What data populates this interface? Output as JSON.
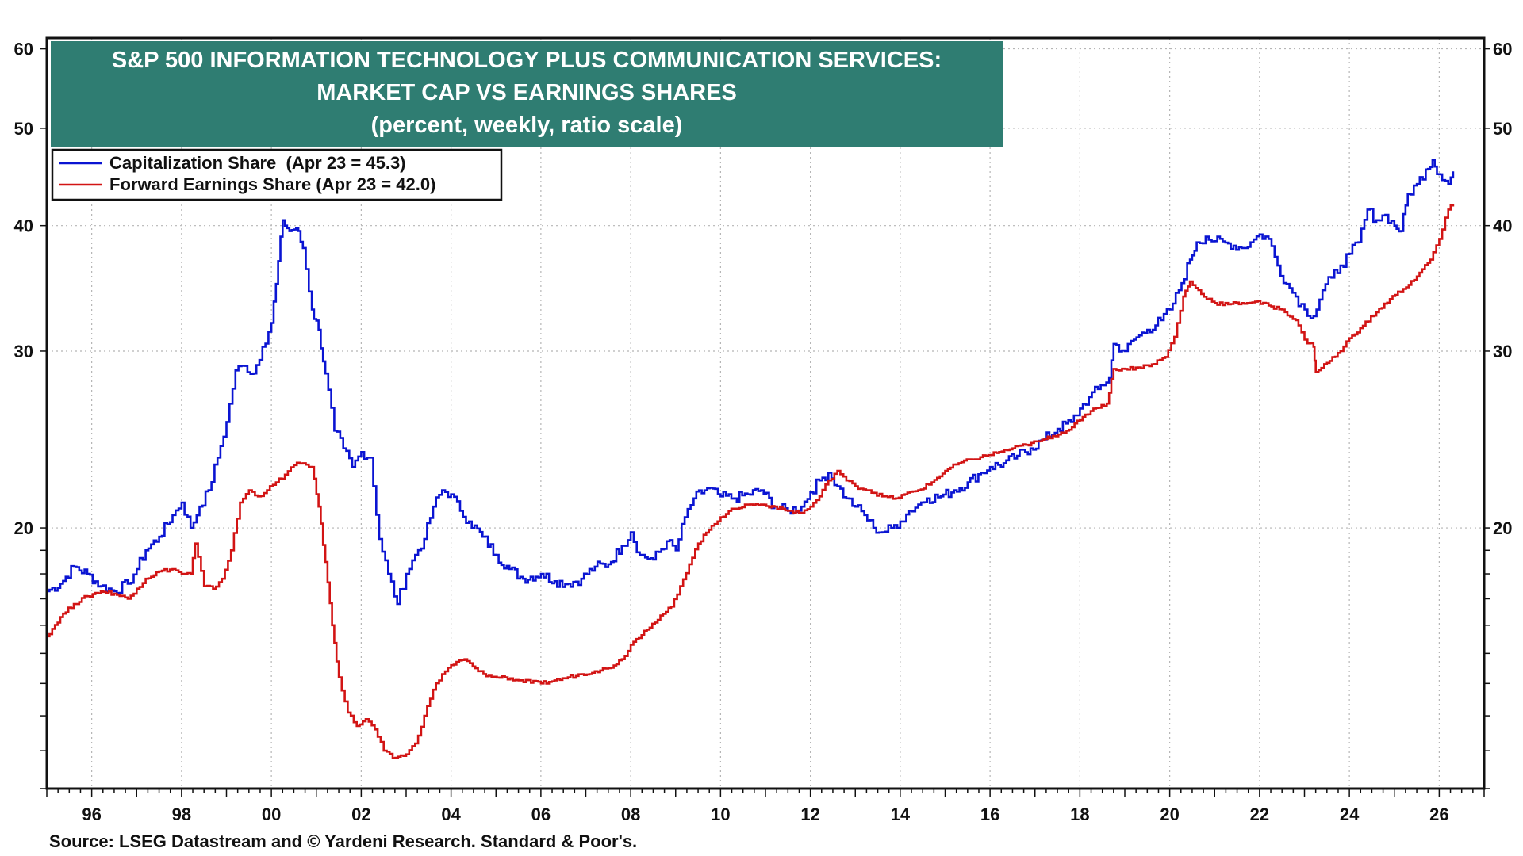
{
  "chart_data": {
    "type": "line",
    "title": "S&P 500 INFORMATION TECHNOLOGY PLUS COMMUNICATION SERVICES:",
    "subtitle": "MARKET CAP VS EARNINGS SHARES",
    "note": "(percent, weekly, ratio scale)",
    "source": "Source: LSEG Datastream and © Yardeni Research. Standard & Poor's.",
    "xlabel": "",
    "ylabel": "",
    "scale": "log",
    "xlim": [
      1995.0,
      2027.0
    ],
    "ylim": [
      11.0,
      61.5
    ],
    "x_ticks": [
      1996,
      1998,
      2000,
      2002,
      2004,
      2006,
      2008,
      2010,
      2012,
      2014,
      2016,
      2018,
      2020,
      2022,
      2024,
      2026
    ],
    "x_tick_labels": [
      "96",
      "98",
      "00",
      "02",
      "04",
      "06",
      "08",
      "10",
      "12",
      "14",
      "16",
      "18",
      "20",
      "22",
      "24",
      "26"
    ],
    "y_ticks": [
      20,
      30,
      40,
      50,
      60
    ],
    "y_tick_labels": [
      "20",
      "30",
      "40",
      "50",
      "60"
    ],
    "y_minor_ticks": [
      11,
      12,
      13,
      14,
      15,
      16,
      17,
      18,
      19,
      20,
      30,
      40,
      50,
      60
    ],
    "grid": true,
    "legend_position": "top-left",
    "series": [
      {
        "name": "Capitalization Share  (Apr 23 = 45.3)",
        "color": "#0a14d2",
        "points": [
          [
            1995.0,
            17.3
          ],
          [
            1995.3,
            17.6
          ],
          [
            1995.6,
            18.3
          ],
          [
            1995.9,
            18.0
          ],
          [
            1996.2,
            17.5
          ],
          [
            1996.5,
            17.3
          ],
          [
            1996.8,
            17.6
          ],
          [
            1997.0,
            18.2
          ],
          [
            1997.2,
            19.0
          ],
          [
            1997.5,
            19.6
          ],
          [
            1997.8,
            20.6
          ],
          [
            1998.0,
            21.2
          ],
          [
            1998.2,
            20.0
          ],
          [
            1998.4,
            21.0
          ],
          [
            1998.6,
            21.8
          ],
          [
            1998.8,
            23.5
          ],
          [
            1999.0,
            25.5
          ],
          [
            1999.2,
            28.7
          ],
          [
            1999.4,
            29.0
          ],
          [
            1999.6,
            28.5
          ],
          [
            1999.8,
            30.3
          ],
          [
            2000.0,
            32.0
          ],
          [
            2000.1,
            35.0
          ],
          [
            2000.25,
            40.5
          ],
          [
            2000.4,
            39.5
          ],
          [
            2000.55,
            39.8
          ],
          [
            2000.7,
            38.0
          ],
          [
            2000.9,
            33.0
          ],
          [
            2001.05,
            31.5
          ],
          [
            2001.2,
            28.5
          ],
          [
            2001.4,
            25.0
          ],
          [
            2001.6,
            24.0
          ],
          [
            2001.8,
            23.0
          ],
          [
            2002.0,
            23.8
          ],
          [
            2002.2,
            23.5
          ],
          [
            2002.4,
            19.5
          ],
          [
            2002.6,
            18.0
          ],
          [
            2002.8,
            16.8
          ],
          [
            2003.0,
            18.0
          ],
          [
            2003.2,
            18.8
          ],
          [
            2003.4,
            19.5
          ],
          [
            2003.6,
            21.0
          ],
          [
            2003.8,
            21.8
          ],
          [
            2004.0,
            21.6
          ],
          [
            2004.2,
            20.8
          ],
          [
            2004.4,
            20.3
          ],
          [
            2004.7,
            19.6
          ],
          [
            2005.0,
            18.8
          ],
          [
            2005.3,
            18.2
          ],
          [
            2005.6,
            17.8
          ],
          [
            2006.0,
            18.0
          ],
          [
            2006.3,
            17.7
          ],
          [
            2006.6,
            17.6
          ],
          [
            2006.9,
            17.8
          ],
          [
            2007.2,
            18.3
          ],
          [
            2007.5,
            18.4
          ],
          [
            2007.8,
            19.2
          ],
          [
            2008.0,
            19.8
          ],
          [
            2008.2,
            18.8
          ],
          [
            2008.5,
            18.6
          ],
          [
            2008.8,
            19.4
          ],
          [
            2009.0,
            19.0
          ],
          [
            2009.2,
            20.5
          ],
          [
            2009.4,
            21.4
          ],
          [
            2009.7,
            21.9
          ],
          [
            2010.0,
            21.5
          ],
          [
            2010.3,
            21.4
          ],
          [
            2010.6,
            21.6
          ],
          [
            2010.9,
            21.8
          ],
          [
            2011.2,
            21.0
          ],
          [
            2011.5,
            20.8
          ],
          [
            2011.8,
            21.0
          ],
          [
            2012.0,
            21.7
          ],
          [
            2012.2,
            22.3
          ],
          [
            2012.4,
            22.7
          ],
          [
            2012.6,
            22.0
          ],
          [
            2012.8,
            21.4
          ],
          [
            2013.0,
            21.0
          ],
          [
            2013.2,
            20.6
          ],
          [
            2013.4,
            20.0
          ],
          [
            2013.6,
            19.8
          ],
          [
            2013.8,
            20.0
          ],
          [
            2014.0,
            20.3
          ],
          [
            2014.2,
            20.8
          ],
          [
            2014.4,
            21.1
          ],
          [
            2014.6,
            21.4
          ],
          [
            2014.9,
            21.5
          ],
          [
            2015.2,
            21.8
          ],
          [
            2015.5,
            22.2
          ],
          [
            2015.8,
            22.7
          ],
          [
            2016.0,
            23.0
          ],
          [
            2016.3,
            23.2
          ],
          [
            2016.6,
            23.6
          ],
          [
            2016.9,
            24.0
          ],
          [
            2017.2,
            24.5
          ],
          [
            2017.5,
            25.1
          ],
          [
            2017.8,
            25.5
          ],
          [
            2018.0,
            26.3
          ],
          [
            2018.2,
            27.0
          ],
          [
            2018.4,
            27.5
          ],
          [
            2018.65,
            28.2
          ],
          [
            2018.75,
            30.5
          ],
          [
            2019.0,
            30.0
          ],
          [
            2019.2,
            30.8
          ],
          [
            2019.5,
            31.5
          ],
          [
            2019.8,
            32.2
          ],
          [
            2020.0,
            33.0
          ],
          [
            2020.2,
            34.5
          ],
          [
            2020.45,
            37.0
          ],
          [
            2020.6,
            38.5
          ],
          [
            2020.8,
            39.0
          ],
          [
            2021.0,
            38.6
          ],
          [
            2021.3,
            38.4
          ],
          [
            2021.6,
            38.0
          ],
          [
            2021.8,
            38.5
          ],
          [
            2022.0,
            39.2
          ],
          [
            2022.2,
            38.8
          ],
          [
            2022.4,
            36.5
          ],
          [
            2022.6,
            35.0
          ],
          [
            2022.8,
            34.0
          ],
          [
            2023.0,
            33.0
          ],
          [
            2023.2,
            32.5
          ],
          [
            2023.4,
            34.5
          ],
          [
            2023.6,
            35.5
          ],
          [
            2023.8,
            36.5
          ],
          [
            2024.0,
            37.5
          ],
          [
            2024.2,
            38.5
          ],
          [
            2024.4,
            41.5
          ],
          [
            2024.6,
            40.5
          ],
          [
            2024.8,
            41.0
          ],
          [
            2025.0,
            40.0
          ],
          [
            2025.15,
            39.5
          ],
          [
            2025.3,
            43.0
          ],
          [
            2025.5,
            44.0
          ],
          [
            2025.7,
            45.5
          ],
          [
            2025.85,
            46.5
          ],
          [
            2026.0,
            45.0
          ],
          [
            2026.2,
            44.0
          ],
          [
            2026.31,
            45.3
          ]
        ]
      },
      {
        "name": "Forward Earnings Share (Apr 23 = 42.0)",
        "color": "#d21414",
        "points": [
          [
            1995.0,
            15.6
          ],
          [
            1995.3,
            16.3
          ],
          [
            1995.6,
            16.8
          ],
          [
            1995.9,
            17.1
          ],
          [
            1996.2,
            17.3
          ],
          [
            1996.5,
            17.2
          ],
          [
            1996.8,
            17.0
          ],
          [
            1997.0,
            17.4
          ],
          [
            1997.2,
            17.8
          ],
          [
            1997.5,
            18.1
          ],
          [
            1997.8,
            18.2
          ],
          [
            1998.0,
            18.0
          ],
          [
            1998.2,
            18.0
          ],
          [
            1998.3,
            19.3
          ],
          [
            1998.5,
            17.5
          ],
          [
            1998.7,
            17.4
          ],
          [
            1998.9,
            17.8
          ],
          [
            1999.1,
            19.0
          ],
          [
            1999.3,
            21.2
          ],
          [
            1999.5,
            21.8
          ],
          [
            1999.7,
            21.5
          ],
          [
            1999.9,
            21.8
          ],
          [
            2000.1,
            22.2
          ],
          [
            2000.3,
            22.6
          ],
          [
            2000.5,
            23.1
          ],
          [
            2000.7,
            23.2
          ],
          [
            2000.9,
            23.0
          ],
          [
            2001.05,
            21.0
          ],
          [
            2001.2,
            18.5
          ],
          [
            2001.35,
            16.0
          ],
          [
            2001.5,
            14.2
          ],
          [
            2001.7,
            13.1
          ],
          [
            2001.9,
            12.7
          ],
          [
            2002.1,
            12.9
          ],
          [
            2002.3,
            12.6
          ],
          [
            2002.5,
            12.0
          ],
          [
            2002.7,
            11.8
          ],
          [
            2003.0,
            11.9
          ],
          [
            2003.2,
            12.2
          ],
          [
            2003.4,
            13.0
          ],
          [
            2003.6,
            13.8
          ],
          [
            2003.8,
            14.3
          ],
          [
            2004.0,
            14.6
          ],
          [
            2004.3,
            14.8
          ],
          [
            2004.6,
            14.4
          ],
          [
            2004.9,
            14.2
          ],
          [
            2005.2,
            14.2
          ],
          [
            2005.5,
            14.1
          ],
          [
            2006.0,
            14.0
          ],
          [
            2006.3,
            14.1
          ],
          [
            2006.6,
            14.2
          ],
          [
            2006.9,
            14.3
          ],
          [
            2007.2,
            14.4
          ],
          [
            2007.5,
            14.5
          ],
          [
            2007.8,
            14.8
          ],
          [
            2008.0,
            15.3
          ],
          [
            2008.3,
            15.8
          ],
          [
            2008.6,
            16.2
          ],
          [
            2008.9,
            16.7
          ],
          [
            2009.1,
            17.5
          ],
          [
            2009.3,
            18.4
          ],
          [
            2009.5,
            19.3
          ],
          [
            2009.8,
            20.1
          ],
          [
            2010.0,
            20.5
          ],
          [
            2010.3,
            20.9
          ],
          [
            2010.6,
            21.1
          ],
          [
            2010.9,
            21.1
          ],
          [
            2011.2,
            21.0
          ],
          [
            2011.5,
            20.8
          ],
          [
            2011.8,
            20.7
          ],
          [
            2012.0,
            21.0
          ],
          [
            2012.2,
            21.5
          ],
          [
            2012.4,
            22.3
          ],
          [
            2012.6,
            22.8
          ],
          [
            2012.8,
            22.3
          ],
          [
            2013.0,
            22.0
          ],
          [
            2013.3,
            21.8
          ],
          [
            2013.6,
            21.5
          ],
          [
            2013.9,
            21.4
          ],
          [
            2014.1,
            21.6
          ],
          [
            2014.4,
            21.8
          ],
          [
            2014.7,
            22.2
          ],
          [
            2015.0,
            22.8
          ],
          [
            2015.3,
            23.2
          ],
          [
            2015.6,
            23.4
          ],
          [
            2015.9,
            23.6
          ],
          [
            2016.2,
            23.8
          ],
          [
            2016.5,
            24.0
          ],
          [
            2016.8,
            24.2
          ],
          [
            2017.1,
            24.4
          ],
          [
            2017.4,
            24.7
          ],
          [
            2017.7,
            25.0
          ],
          [
            2018.0,
            25.6
          ],
          [
            2018.3,
            26.3
          ],
          [
            2018.6,
            26.6
          ],
          [
            2018.75,
            28.8
          ],
          [
            2019.0,
            28.8
          ],
          [
            2019.3,
            28.9
          ],
          [
            2019.6,
            29.1
          ],
          [
            2019.9,
            29.6
          ],
          [
            2020.1,
            31.0
          ],
          [
            2020.3,
            34.0
          ],
          [
            2020.45,
            35.2
          ],
          [
            2020.7,
            34.2
          ],
          [
            2021.0,
            33.5
          ],
          [
            2021.3,
            33.4
          ],
          [
            2021.6,
            33.5
          ],
          [
            2021.9,
            33.6
          ],
          [
            2022.2,
            33.3
          ],
          [
            2022.5,
            33.0
          ],
          [
            2022.8,
            32.2
          ],
          [
            2023.0,
            30.8
          ],
          [
            2023.2,
            30.3
          ],
          [
            2023.25,
            28.6
          ],
          [
            2023.5,
            29.2
          ],
          [
            2023.8,
            30.0
          ],
          [
            2024.0,
            30.9
          ],
          [
            2024.3,
            31.8
          ],
          [
            2024.6,
            32.8
          ],
          [
            2024.9,
            33.8
          ],
          [
            2025.2,
            34.6
          ],
          [
            2025.5,
            35.6
          ],
          [
            2025.8,
            37.0
          ],
          [
            2026.0,
            38.8
          ],
          [
            2026.2,
            41.5
          ],
          [
            2026.31,
            42.0
          ]
        ]
      }
    ]
  }
}
